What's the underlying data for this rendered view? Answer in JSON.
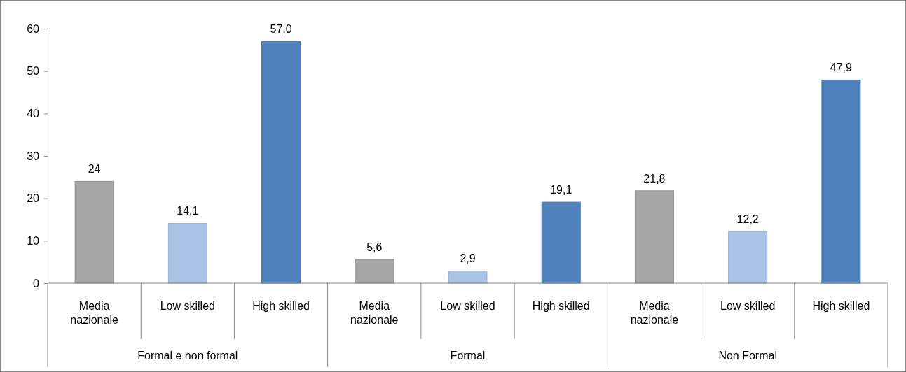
{
  "chart_data": {
    "type": "bar",
    "categories": [
      "Formal e non formal",
      "Formal",
      "Non Formal"
    ],
    "series": [
      {
        "name": "Media nazionale",
        "color": "#a5a5a5",
        "values": [
          24,
          5.6,
          21.8
        ],
        "value_labels": [
          "24",
          "5,6",
          "21,8"
        ]
      },
      {
        "name": "Low skilled",
        "color": "#a9c3e6",
        "values": [
          14.1,
          2.9,
          12.2
        ],
        "value_labels": [
          "14,1",
          "2,9",
          "12,2"
        ]
      },
      {
        "name": "High skilled",
        "color": "#4f81bd",
        "values": [
          57.0,
          19.1,
          47.9
        ],
        "value_labels": [
          "57,0",
          "19,1",
          "47,9"
        ]
      }
    ],
    "ylim": [
      0,
      60
    ],
    "yticks": [
      0,
      10,
      20,
      30,
      40,
      50,
      60
    ],
    "grid": false
  }
}
